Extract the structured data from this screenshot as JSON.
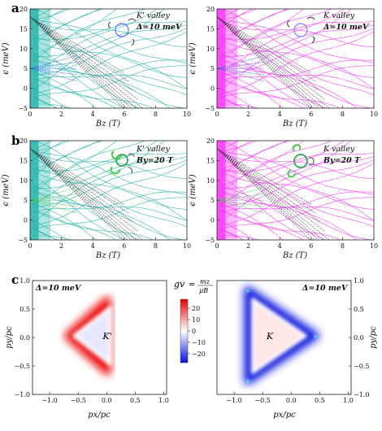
{
  "panel_letters": [
    "a",
    "b",
    "c"
  ],
  "colors": {
    "teal": "#1ab3a6",
    "magenta": "#ff2bff",
    "dark_line": "#333333",
    "blue_line": "#3a5cff",
    "green_line": "#39c43a",
    "red": "#ee2222",
    "blue": "#2233dd"
  },
  "panel_a": {
    "left": {
      "valley": "K' valley",
      "field": "Δ=10 meV",
      "color": "teal"
    },
    "right": {
      "valley": "K valley",
      "field": "Δ=10 meV",
      "color": "magenta"
    }
  },
  "panel_b": {
    "left": {
      "valley": "K' valley",
      "field": "By=20 T",
      "color": "teal"
    },
    "right": {
      "valley": "K valley",
      "field": "By=20 T",
      "color": "magenta"
    }
  },
  "axes_ab": {
    "xlabel": "Bz (T)",
    "ylabel": "ϵ (meV)",
    "xticks": [
      "0",
      "2",
      "4",
      "6",
      "8",
      "10"
    ],
    "yticks": [
      "−5",
      "0",
      "5",
      "10",
      "15",
      "20"
    ],
    "xlim": [
      0,
      10
    ],
    "ylim": [
      -5,
      20
    ]
  },
  "panel_c": {
    "left": {
      "field": "Δ=10 meV",
      "valley_label": "K'"
    },
    "right": {
      "field": "Δ=10 meV",
      "valley_label": "K"
    },
    "xlabel": "px/pc",
    "ylabel": "py/pc",
    "xticks": [
      "−1.0",
      "−0.5",
      "0.0",
      "0.5",
      "1.0"
    ],
    "yticks": [
      "−1.0",
      "−0.5",
      "0.0",
      "0.5",
      "1.0"
    ],
    "colorbar": {
      "label_gv": "gv",
      "label_frac_num": "mz",
      "label_frac_den": "μB",
      "ticks": [
        "20",
        "10",
        "0",
        "−10",
        "−20"
      ],
      "range": [
        -28,
        28
      ]
    }
  }
}
